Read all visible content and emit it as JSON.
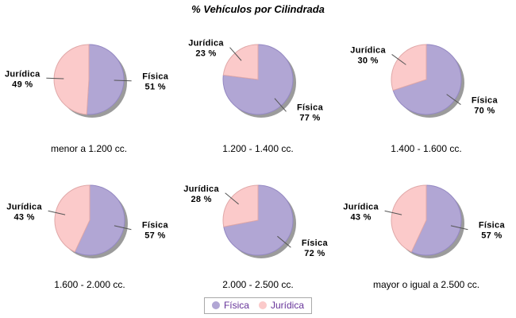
{
  "chart_data": {
    "type": "pie",
    "title": "% Vehículos por Cilindrada",
    "series_labels": [
      "Física",
      "Jurídica"
    ],
    "colors": {
      "fisica_fill": "#B1A6D4",
      "fisica_stroke": "#9488C2",
      "juridica_fill": "#FBCACA",
      "juridica_stroke": "#E0A8A8",
      "shadow": "#9B9B9B",
      "leader_line": "#555555",
      "legend_text": "#663399",
      "legend_border": "#A9A9A9"
    },
    "legend_position": "bottom",
    "pies": [
      {
        "category": "menor a 1.200 cc.",
        "fisica_pct": 51,
        "juridica_pct": 49,
        "fisica_label": "51 %",
        "juridica_label": "49 %"
      },
      {
        "category": "1.200 - 1.400 cc.",
        "fisica_pct": 77,
        "juridica_pct": 23,
        "fisica_label": "77 %",
        "juridica_label": "23 %"
      },
      {
        "category": "1.400 - 1.600 cc.",
        "fisica_pct": 70,
        "juridica_pct": 30,
        "fisica_label": "70 %",
        "juridica_label": "30 %"
      },
      {
        "category": "1.600 - 2.000 cc.",
        "fisica_pct": 57,
        "juridica_pct": 43,
        "fisica_label": "57 %",
        "juridica_label": "43 %"
      },
      {
        "category": "2.000 - 2.500 cc.",
        "fisica_pct": 72,
        "juridica_pct": 28,
        "fisica_label": "72 %",
        "juridica_label": "28 %"
      },
      {
        "category": "mayor o igual a 2.500 cc.",
        "fisica_pct": 57,
        "juridica_pct": 43,
        "fisica_label": "57 %",
        "juridica_label": "43 %"
      }
    ],
    "legend": {
      "items": [
        {
          "name": "Física"
        },
        {
          "name": "Jurídica"
        }
      ]
    }
  }
}
